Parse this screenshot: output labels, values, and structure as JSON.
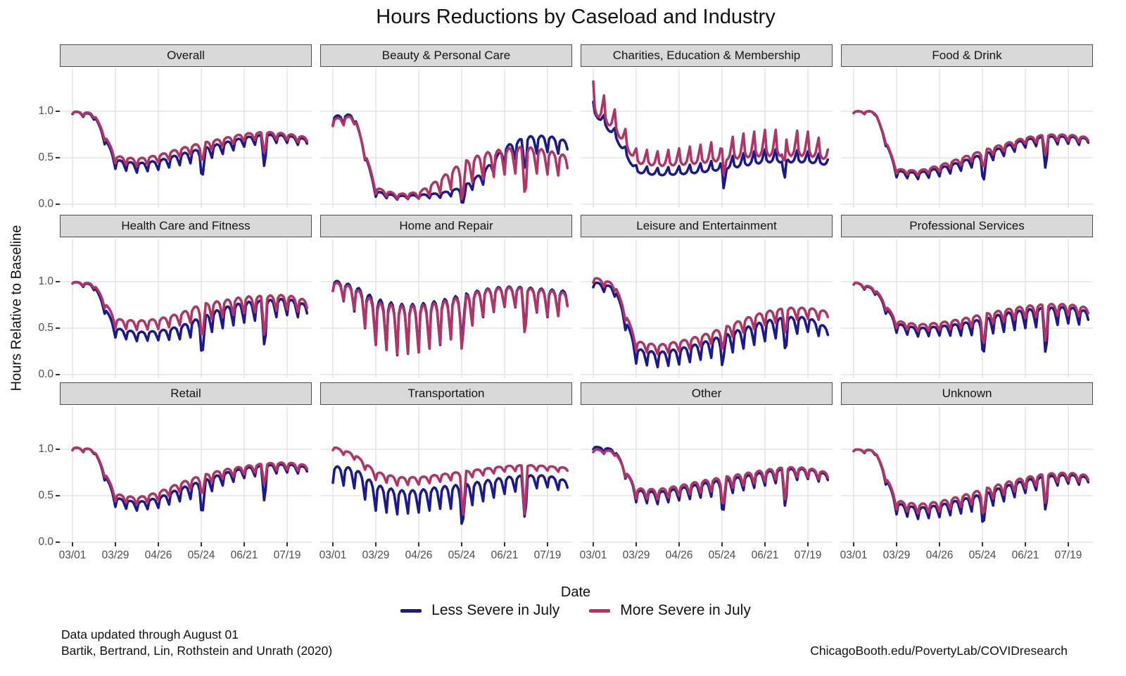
{
  "title": "Hours Reductions by Caseload and Industry",
  "axes": {
    "x_label": "Date",
    "y_label": "Hours Relative to Baseline",
    "y_tick_labels": [
      "1.0",
      "0.5",
      "0.0"
    ],
    "x_tick_labels": [
      "03/01",
      "03/29",
      "04/26",
      "05/24",
      "06/21",
      "07/19"
    ]
  },
  "legend": {
    "items": [
      {
        "label": "Less Severe in July",
        "color": "#1a1a8c"
      },
      {
        "label": "More Severe in July",
        "color": "#b03566"
      }
    ]
  },
  "footnotes": {
    "left_line1": "Data updated through August 01",
    "left_line2": "Bartik, Bertrand, Lin, Rothstein and Unrath (2020)",
    "right": "ChicagoBooth.edu/PovertyLab/COVIDresearch"
  },
  "colors": {
    "less_severe": "#1a1a8c",
    "more_severe": "#b03566",
    "gridline": "#e4e4e4",
    "strip_fill": "#d9d9d9",
    "strip_border": "#4d4d4d",
    "axis_text": "#4d4d4d"
  },
  "chart_data": {
    "type": "line",
    "title": "Hours Reductions by Caseload and Industry",
    "xlabel": "Date",
    "ylabel": "Hours Relative to Baseline",
    "x_unit": "days since 03/01 (day 0 = Sunday 03/01/2020, data through 08/01)",
    "x_ticks_days": [
      0,
      28,
      56,
      84,
      112,
      140
    ],
    "x_tick_labels": [
      "03/01",
      "03/29",
      "04/26",
      "05/24",
      "06/21",
      "07/19"
    ],
    "x_range_days": [
      0,
      153
    ],
    "y_ticks": [
      0.0,
      0.5,
      1.0
    ],
    "ylim": [
      0,
      1.45
    ],
    "grid": "major-only",
    "legend_position": "bottom",
    "series_names": [
      "Less Severe in July",
      "More Severe in July"
    ],
    "control_days": [
      0,
      14,
      28,
      42,
      56,
      70,
      84,
      98,
      112,
      126,
      140,
      153
    ],
    "week_pattern": [
      1.0,
      0.2,
      0.05,
      0.0,
      0.05,
      0.2,
      0.6
    ],
    "week_pattern_note": "weekly dip multiplier by day-of-week (Sun..Sat); negative amp = upward weekly spikes",
    "holidays": [
      {
        "day": 85,
        "label": "Memorial Day",
        "depth": 0.32
      },
      {
        "day": 125,
        "label": "July 4",
        "depth": 0.35
      }
    ],
    "panels": [
      {
        "label": "Overall",
        "less": {
          "trend": [
            1.0,
            0.97,
            0.48,
            0.44,
            0.47,
            0.54,
            0.6,
            0.66,
            0.72,
            0.75,
            0.74,
            0.7
          ],
          "amp": [
            0.03,
            0.06,
            0.1,
            0.1,
            0.1,
            0.12,
            0.14,
            0.12,
            0.1,
            0.09,
            0.08,
            0.08
          ],
          "holiday_scale": 0.8
        },
        "more": {
          "trend": [
            1.0,
            0.98,
            0.52,
            0.49,
            0.53,
            0.6,
            0.66,
            0.71,
            0.76,
            0.78,
            0.76,
            0.72
          ],
          "amp": [
            0.03,
            0.05,
            0.08,
            0.08,
            0.08,
            0.09,
            0.1,
            0.09,
            0.08,
            0.08,
            0.07,
            0.07
          ],
          "holiday_scale": 0.5
        }
      },
      {
        "label": "Beauty & Personal Care",
        "less": {
          "trend": [
            0.95,
            0.97,
            0.14,
            0.09,
            0.1,
            0.12,
            0.18,
            0.35,
            0.62,
            0.73,
            0.74,
            0.68
          ],
          "amp": [
            0.1,
            0.1,
            0.06,
            0.04,
            0.04,
            0.05,
            0.08,
            0.14,
            0.18,
            0.2,
            0.18,
            0.15
          ],
          "holiday_scale": 0.6
        },
        "more": {
          "trend": [
            0.92,
            0.95,
            0.18,
            0.11,
            0.13,
            0.28,
            0.45,
            0.55,
            0.6,
            0.62,
            0.58,
            0.52
          ],
          "amp": [
            0.08,
            0.09,
            0.07,
            0.05,
            0.07,
            0.16,
            0.25,
            0.28,
            0.28,
            0.28,
            0.26,
            0.22
          ],
          "holiday_scale": 0.9
        }
      },
      {
        "label": "Charities, Education & Membership",
        "less": {
          "trend": [
            0.98,
            0.72,
            0.34,
            0.31,
            0.32,
            0.34,
            0.37,
            0.41,
            0.45,
            0.45,
            0.45,
            0.42
          ],
          "amp": [
            -0.12,
            -0.1,
            -0.08,
            -0.08,
            -0.09,
            -0.1,
            -0.12,
            -0.14,
            -0.14,
            -0.14,
            -0.12,
            -0.1
          ],
          "holiday_scale": 0.7
        },
        "more": {
          "trend": [
            0.98,
            0.8,
            0.44,
            0.41,
            0.42,
            0.44,
            0.47,
            0.5,
            0.52,
            0.52,
            0.52,
            0.48
          ],
          "amp": [
            -0.34,
            -0.22,
            -0.16,
            -0.16,
            -0.18,
            -0.2,
            -0.22,
            -0.26,
            -0.28,
            -0.28,
            -0.26,
            -0.18
          ],
          "holiday_scale": 0.6
        }
      },
      {
        "label": "Food & Drink",
        "less": {
          "trend": [
            1.0,
            1.0,
            0.36,
            0.34,
            0.39,
            0.46,
            0.54,
            0.62,
            0.7,
            0.73,
            0.73,
            0.71
          ],
          "amp": [
            0.02,
            0.04,
            0.07,
            0.07,
            0.09,
            0.1,
            0.11,
            0.1,
            0.09,
            0.09,
            0.08,
            0.08
          ],
          "holiday_scale": 0.8
        },
        "more": {
          "trend": [
            1.0,
            1.0,
            0.38,
            0.36,
            0.42,
            0.5,
            0.58,
            0.65,
            0.72,
            0.75,
            0.75,
            0.72
          ],
          "amp": [
            0.02,
            0.03,
            0.05,
            0.05,
            0.07,
            0.08,
            0.08,
            0.08,
            0.07,
            0.07,
            0.07,
            0.06
          ],
          "holiday_scale": 0.5
        }
      },
      {
        "label": "Health Care and Fitness",
        "less": {
          "trend": [
            1.0,
            0.97,
            0.5,
            0.46,
            0.47,
            0.52,
            0.62,
            0.72,
            0.78,
            0.8,
            0.82,
            0.75
          ],
          "amp": [
            0.02,
            0.06,
            0.1,
            0.1,
            0.1,
            0.14,
            0.2,
            0.22,
            0.22,
            0.2,
            0.18,
            0.15
          ],
          "holiday_scale": 1.0
        },
        "more": {
          "trend": [
            1.0,
            0.98,
            0.6,
            0.58,
            0.6,
            0.66,
            0.76,
            0.8,
            0.84,
            0.85,
            0.86,
            0.8
          ],
          "amp": [
            0.02,
            0.05,
            0.1,
            0.1,
            0.11,
            0.13,
            0.18,
            0.18,
            0.18,
            0.17,
            0.16,
            0.14
          ],
          "holiday_scale": 0.9
        }
      },
      {
        "label": "Home and Repair",
        "less": {
          "trend": [
            1.02,
            0.96,
            0.82,
            0.76,
            0.76,
            0.8,
            0.86,
            0.92,
            0.95,
            0.94,
            0.92,
            0.9
          ],
          "amp": [
            0.12,
            0.28,
            0.5,
            0.55,
            0.52,
            0.48,
            0.42,
            0.3,
            0.22,
            0.22,
            0.3,
            0.26
          ],
          "holiday_scale": 0.8
        },
        "more": {
          "trend": [
            1.0,
            0.94,
            0.78,
            0.74,
            0.74,
            0.78,
            0.84,
            0.91,
            0.94,
            0.93,
            0.91,
            0.88
          ],
          "amp": [
            0.1,
            0.24,
            0.46,
            0.52,
            0.5,
            0.45,
            0.4,
            0.28,
            0.2,
            0.2,
            0.28,
            0.24
          ],
          "holiday_scale": 1.0
        }
      },
      {
        "label": "Leisure and Entertainment",
        "less": {
          "trend": [
            1.0,
            0.94,
            0.28,
            0.24,
            0.28,
            0.34,
            0.42,
            0.5,
            0.58,
            0.62,
            0.62,
            0.5
          ],
          "amp": [
            0.06,
            0.1,
            0.16,
            0.16,
            0.17,
            0.18,
            0.22,
            0.22,
            0.22,
            0.2,
            0.16,
            0.12
          ],
          "holiday_scale": 0.6
        },
        "more": {
          "trend": [
            1.05,
            0.98,
            0.36,
            0.32,
            0.36,
            0.42,
            0.5,
            0.6,
            0.68,
            0.72,
            0.72,
            0.68
          ],
          "amp": [
            0.06,
            0.08,
            0.1,
            0.1,
            0.11,
            0.12,
            0.14,
            0.15,
            0.15,
            0.14,
            0.12,
            0.1
          ],
          "holiday_scale": 0.5
        }
      },
      {
        "label": "Professional Services",
        "less": {
          "trend": [
            1.0,
            0.92,
            0.55,
            0.5,
            0.52,
            0.55,
            0.6,
            0.66,
            0.7,
            0.72,
            0.73,
            0.68
          ],
          "amp": [
            0.03,
            0.06,
            0.1,
            0.09,
            0.1,
            0.13,
            0.17,
            0.2,
            0.2,
            0.2,
            0.18,
            0.15
          ],
          "holiday_scale": 1.0
        },
        "more": {
          "trend": [
            1.0,
            0.93,
            0.58,
            0.54,
            0.56,
            0.6,
            0.65,
            0.7,
            0.74,
            0.76,
            0.76,
            0.72
          ],
          "amp": [
            0.03,
            0.05,
            0.08,
            0.07,
            0.08,
            0.1,
            0.12,
            0.13,
            0.13,
            0.13,
            0.12,
            0.1
          ],
          "holiday_scale": 0.9
        }
      },
      {
        "label": "Retail",
        "less": {
          "trend": [
            1.02,
            1.0,
            0.48,
            0.43,
            0.48,
            0.58,
            0.66,
            0.74,
            0.8,
            0.83,
            0.84,
            0.81
          ],
          "amp": [
            0.03,
            0.05,
            0.1,
            0.09,
            0.11,
            0.14,
            0.17,
            0.13,
            0.11,
            0.1,
            0.09,
            0.08
          ],
          "holiday_scale": 0.9
        },
        "more": {
          "trend": [
            1.02,
            1.0,
            0.52,
            0.48,
            0.54,
            0.64,
            0.72,
            0.78,
            0.82,
            0.85,
            0.86,
            0.83
          ],
          "amp": [
            0.03,
            0.04,
            0.08,
            0.07,
            0.09,
            0.1,
            0.11,
            0.1,
            0.09,
            0.08,
            0.08,
            0.07
          ],
          "holiday_scale": 0.5
        }
      },
      {
        "label": "Transportation",
        "less": {
          "trend": [
            0.82,
            0.8,
            0.62,
            0.56,
            0.56,
            0.6,
            0.62,
            0.66,
            0.7,
            0.72,
            0.72,
            0.66
          ],
          "amp": [
            0.18,
            0.22,
            0.28,
            0.26,
            0.24,
            0.24,
            0.26,
            0.22,
            0.18,
            0.15,
            0.13,
            0.12
          ],
          "holiday_scale": 1.0
        },
        "more": {
          "trend": [
            1.03,
            0.95,
            0.76,
            0.7,
            0.7,
            0.73,
            0.76,
            0.79,
            0.82,
            0.83,
            0.82,
            0.8
          ],
          "amp": [
            0.04,
            0.06,
            0.09,
            0.09,
            0.08,
            0.08,
            0.08,
            0.07,
            0.06,
            0.06,
            0.05,
            0.05
          ],
          "holiday_scale": 1.4
        }
      },
      {
        "label": "Other",
        "less": {
          "trend": [
            1.03,
            1.0,
            0.56,
            0.54,
            0.58,
            0.63,
            0.67,
            0.71,
            0.76,
            0.79,
            0.79,
            0.73
          ],
          "amp": [
            0.03,
            0.06,
            0.13,
            0.13,
            0.13,
            0.15,
            0.17,
            0.15,
            0.15,
            0.13,
            0.11,
            0.1
          ],
          "holiday_scale": 0.9
        },
        "more": {
          "trend": [
            1.0,
            0.98,
            0.58,
            0.57,
            0.61,
            0.66,
            0.7,
            0.74,
            0.78,
            0.81,
            0.8,
            0.75
          ],
          "amp": [
            0.03,
            0.05,
            0.11,
            0.11,
            0.11,
            0.13,
            0.14,
            0.13,
            0.13,
            0.11,
            0.1,
            0.09
          ],
          "holiday_scale": 0.8
        }
      },
      {
        "label": "Unknown",
        "less": {
          "trend": [
            1.0,
            0.99,
            0.42,
            0.37,
            0.4,
            0.46,
            0.52,
            0.6,
            0.67,
            0.71,
            0.73,
            0.7
          ],
          "amp": [
            0.02,
            0.05,
            0.12,
            0.12,
            0.13,
            0.15,
            0.17,
            0.16,
            0.14,
            0.12,
            0.1,
            0.09
          ],
          "holiday_scale": 0.8
        },
        "more": {
          "trend": [
            1.0,
            0.99,
            0.45,
            0.41,
            0.44,
            0.5,
            0.57,
            0.64,
            0.7,
            0.74,
            0.75,
            0.72
          ],
          "amp": [
            0.02,
            0.04,
            0.1,
            0.1,
            0.11,
            0.12,
            0.14,
            0.13,
            0.12,
            0.11,
            0.09,
            0.08
          ],
          "holiday_scale": 0.7
        }
      }
    ]
  }
}
